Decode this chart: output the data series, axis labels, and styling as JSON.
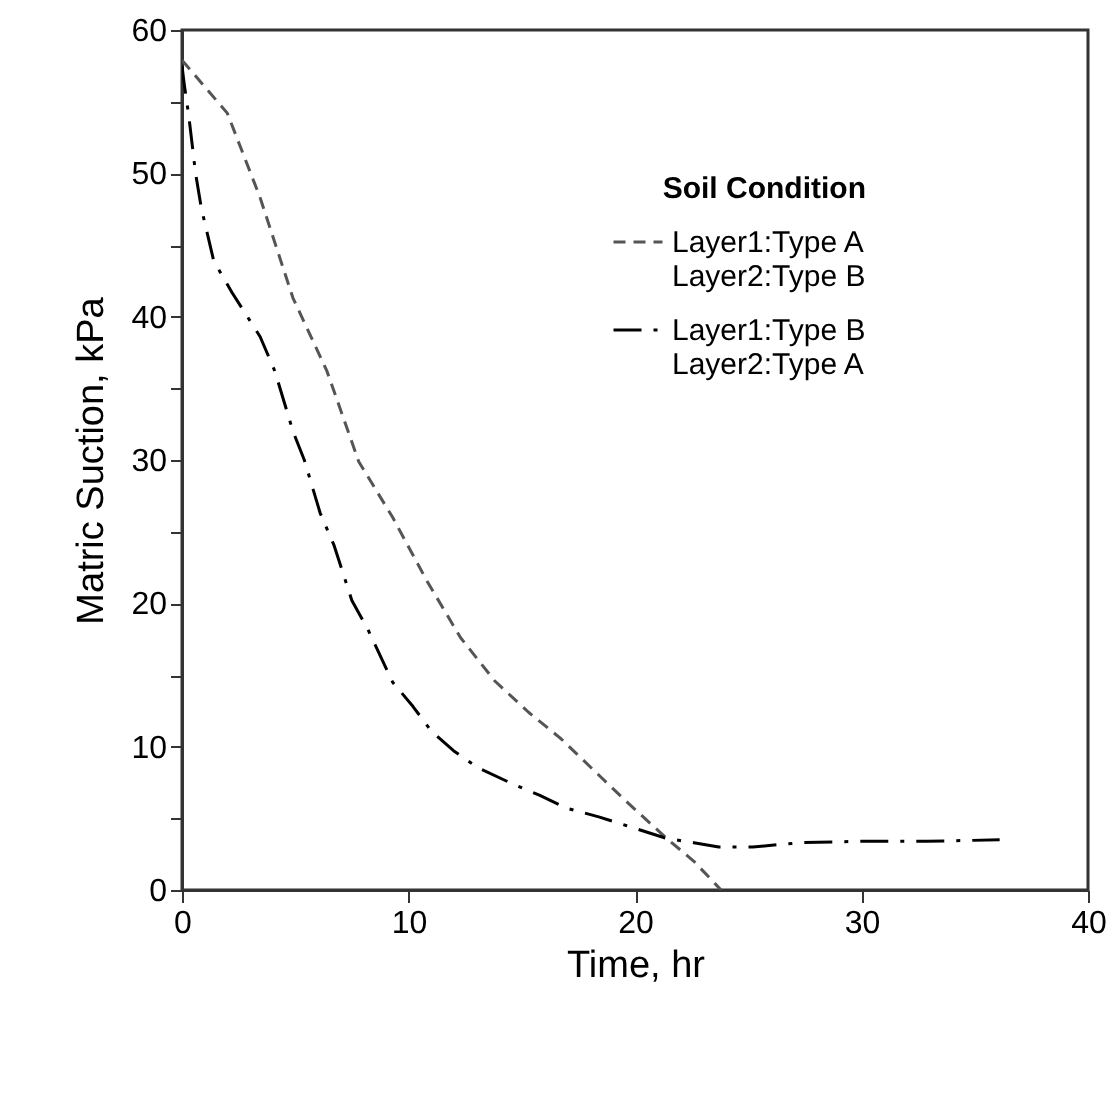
{
  "chart_data": {
    "type": "line",
    "xlabel": "Time, hr",
    "ylabel": "Matric Suction, kPa",
    "legend_title": "Soil Condition",
    "legend": "top right",
    "marker": "none",
    "xlim": [
      0,
      40
    ],
    "xticks": [
      0,
      10,
      20,
      30,
      40
    ],
    "ylim": [
      0,
      60
    ],
    "yticks": [
      0,
      {
        "value": 5,
        "label": null
      },
      10,
      {
        "value": 15,
        "label": null
      },
      20,
      {
        "value": 25,
        "label": null
      },
      30,
      {
        "value": 35,
        "label": null
      },
      40,
      {
        "value": 45,
        "label": null
      },
      50,
      {
        "value": 55,
        "label": null
      },
      60
    ],
    "grid": false,
    "series": [
      {
        "name": "Layer1:Type A\nLayer2:Type B",
        "color": "#555555",
        "line_style": "dashed",
        "x": [
          0,
          2.0,
          3.45,
          4.9,
          6.4,
          7.8,
          9.3,
          10.8,
          12.3,
          13.8,
          15.3,
          16.7,
          19.6,
          21.4,
          22.6,
          23.8
        ],
        "values": [
          57.9,
          54.2,
          48.3,
          41.3,
          36.2,
          29.9,
          26.0,
          21.6,
          17.6,
          14.6,
          12.4,
          10.6,
          6.2,
          3.6,
          2.0,
          0
        ]
      },
      {
        "name": "Layer1:Type B\nLayer2:Type A",
        "color": "#000000",
        "line_style": "dashdot",
        "x": [
          0,
          0.1,
          0.3,
          0.6,
          0.85,
          1.4,
          2.2,
          3.45,
          4.1,
          4.9,
          5.4,
          6.1,
          6.7,
          7.5,
          8.2,
          9.3,
          10.2,
          11.0,
          12.0,
          13.1,
          14.6,
          15.8,
          17.0,
          18.4,
          19.6,
          21.4,
          22.6,
          23.7,
          25.2,
          27.3,
          29.9,
          32.9,
          36.1
        ],
        "values": [
          57.5,
          56.2,
          54,
          50,
          47.6,
          43.9,
          41.7,
          38.6,
          36.2,
          32.0,
          30.0,
          26.3,
          24.1,
          20.2,
          18.2,
          14.5,
          12.8,
          11.1,
          9.7,
          8.5,
          7.4,
          6.6,
          5.7,
          5.1,
          4.5,
          3.6,
          3.3,
          3.0,
          3.0,
          3.3,
          3.4,
          3.4,
          3.5
        ]
      }
    ]
  }
}
